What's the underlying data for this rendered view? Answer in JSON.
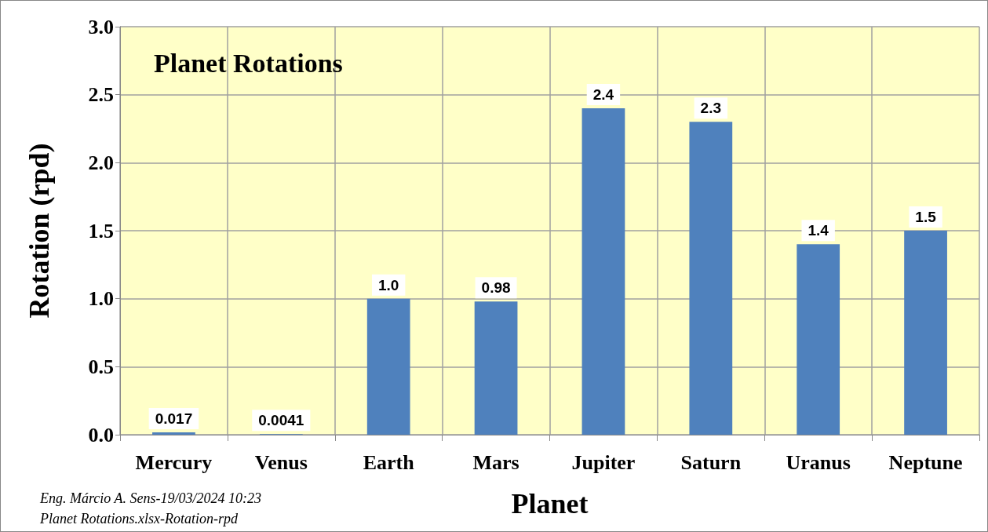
{
  "chart_data": {
    "type": "bar",
    "title": "Planet Rotations",
    "xlabel": "Planet",
    "ylabel": "Rotation (rpd)",
    "categories": [
      "Mercury",
      "Venus",
      "Earth",
      "Mars",
      "Jupiter",
      "Saturn",
      "Uranus",
      "Neptune"
    ],
    "values": [
      0.017,
      0.0041,
      1.0,
      0.98,
      2.4,
      2.3,
      1.4,
      1.5
    ],
    "color": "#4f81bd",
    "ylim": [
      0,
      3
    ],
    "yticks": [
      {
        "value": 0,
        "label": "0.0"
      },
      {
        "value": 0.5,
        "label": "0.5"
      },
      {
        "value": 1,
        "label": "1.0"
      },
      {
        "value": 1.5,
        "label": "1.5"
      },
      {
        "value": 2,
        "label": "2.0"
      },
      {
        "value": 2.5,
        "label": "2.5"
      },
      {
        "value": 3,
        "label": "3.0"
      }
    ],
    "grid": true,
    "value_labels": [
      "0.017",
      "0.0041",
      "1.0",
      "0.98",
      "2.4",
      "2.3",
      "1.4",
      "1.5"
    ],
    "annotations": [
      "Eng. Márcio A. Sens-19/03/2024 10:23",
      "Planet Rotations.xlsx-Rotation-rpd"
    ]
  }
}
